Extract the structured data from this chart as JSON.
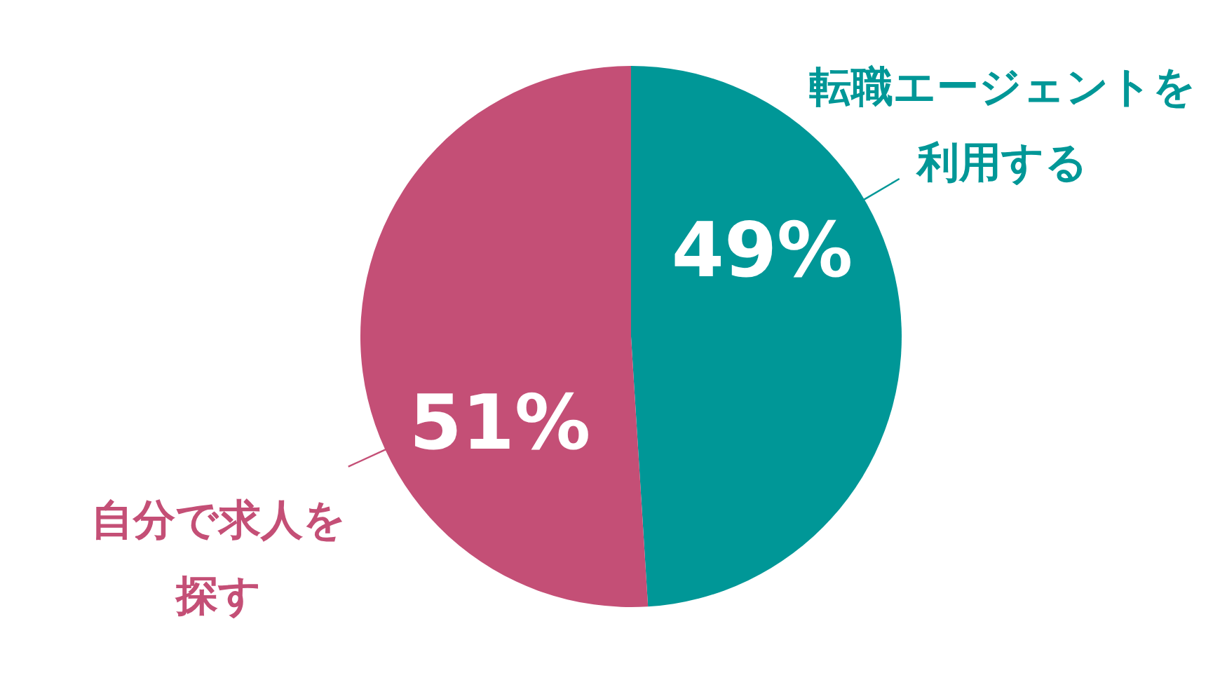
{
  "chart_data": {
    "type": "pie",
    "categories": [
      "転職エージェントを利用する",
      "自分で求人を探す"
    ],
    "values": [
      49,
      51
    ],
    "colors": [
      "#009797",
      "#c44f76"
    ],
    "value_labels": [
      "49%",
      "51%"
    ]
  }
}
